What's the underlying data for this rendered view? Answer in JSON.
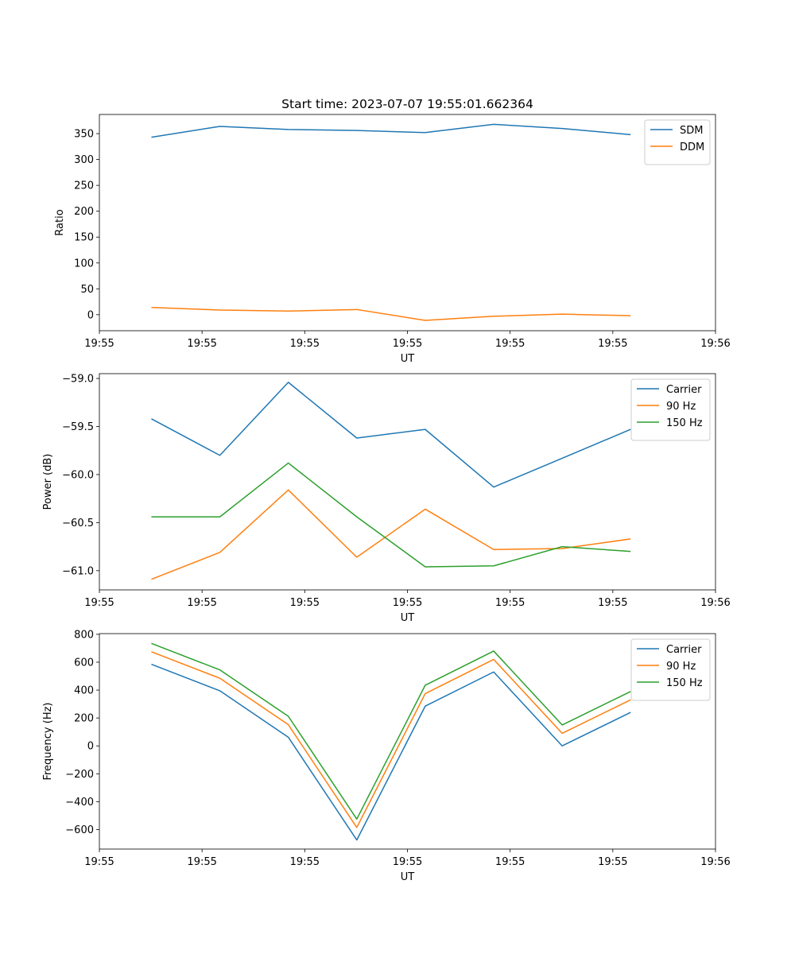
{
  "figure_title": "Start time: 2023-07-07 19:55:01.662364",
  "chart_data": [
    {
      "type": "line",
      "title": "Start time: 2023-07-07 19:55:01.662364",
      "xlabel": "UT",
      "ylabel": "Ratio",
      "x": [
        1,
        2,
        3,
        4,
        5,
        6,
        7,
        8
      ],
      "xlim": [
        0.24,
        9.24
      ],
      "xticks": [
        0.24,
        1.74,
        3.24,
        4.74,
        6.24,
        7.74,
        9.24
      ],
      "xtick_labels": [
        "19:55",
        "19:55",
        "19:55",
        "19:55",
        "19:55",
        "19:55",
        "19:56"
      ],
      "ylim": [
        -31,
        387
      ],
      "yticks": [
        0,
        50,
        100,
        150,
        200,
        250,
        300,
        350
      ],
      "ytick_labels": [
        "0",
        "50",
        "100",
        "150",
        "200",
        "250",
        "300",
        "350"
      ],
      "legend": "top-right",
      "series": [
        {
          "name": "SDM",
          "color": "#1f77b4",
          "values": [
            343,
            364,
            358,
            356,
            352,
            368,
            360,
            348
          ]
        },
        {
          "name": "DDM",
          "color": "#ff7f0e",
          "values": [
            14,
            9,
            7,
            10,
            -11,
            -3,
            1,
            -2
          ]
        }
      ]
    },
    {
      "type": "line",
      "title": "",
      "xlabel": "UT",
      "ylabel": "Power (dB)",
      "x": [
        1,
        2,
        3,
        4,
        5,
        6,
        7,
        8
      ],
      "xlim": [
        0.24,
        9.24
      ],
      "xticks": [
        0.24,
        1.74,
        3.24,
        4.74,
        6.24,
        7.74,
        9.24
      ],
      "xtick_labels": [
        "19:55",
        "19:55",
        "19:55",
        "19:55",
        "19:55",
        "19:55",
        "19:56"
      ],
      "ylim": [
        -61.2,
        -58.95
      ],
      "yticks": [
        -61.0,
        -60.5,
        -60.0,
        -59.5,
        -59.0
      ],
      "ytick_labels": [
        "−61.0",
        "−60.5",
        "−60.0",
        "−59.5",
        "−59.0"
      ],
      "legend": "top-right",
      "series": [
        {
          "name": "Carrier",
          "color": "#1f77b4",
          "values": [
            -59.42,
            -59.8,
            -59.04,
            -59.62,
            -59.53,
            -60.13,
            -59.83,
            -59.53
          ]
        },
        {
          "name": "90 Hz",
          "color": "#ff7f0e",
          "values": [
            -61.09,
            -60.81,
            -60.16,
            -60.86,
            -60.36,
            -60.78,
            -60.77,
            -60.67
          ]
        },
        {
          "name": "150 Hz",
          "color": "#2ca02c",
          "values": [
            -60.44,
            -60.44,
            -59.88,
            -60.44,
            -60.96,
            -60.95,
            -60.75,
            -60.8
          ]
        }
      ]
    },
    {
      "type": "line",
      "title": "",
      "xlabel": "UT",
      "ylabel": "Frequency (Hz)",
      "x": [
        1,
        2,
        3,
        4,
        5,
        6,
        7,
        8
      ],
      "xlim": [
        0.24,
        9.24
      ],
      "xticks": [
        0.24,
        1.74,
        3.24,
        4.74,
        6.24,
        7.74,
        9.24
      ],
      "xtick_labels": [
        "19:55",
        "19:55",
        "19:55",
        "19:55",
        "19:55",
        "19:55",
        "19:56"
      ],
      "ylim": [
        -740,
        805
      ],
      "yticks": [
        -600,
        -400,
        -200,
        0,
        200,
        400,
        600,
        800
      ],
      "ytick_labels": [
        "−600",
        "−400",
        "−200",
        "0",
        "200",
        "400",
        "600",
        "800"
      ],
      "legend": "top-right",
      "series": [
        {
          "name": "Carrier",
          "color": "#1f77b4",
          "values": [
            585,
            395,
            62,
            -675,
            285,
            530,
            0,
            240
          ]
        },
        {
          "name": "90 Hz",
          "color": "#ff7f0e",
          "values": [
            675,
            485,
            152,
            -585,
            375,
            620,
            90,
            330
          ]
        },
        {
          "name": "150 Hz",
          "color": "#2ca02c",
          "values": [
            735,
            545,
            212,
            -525,
            435,
            680,
            150,
            390
          ]
        }
      ]
    }
  ]
}
